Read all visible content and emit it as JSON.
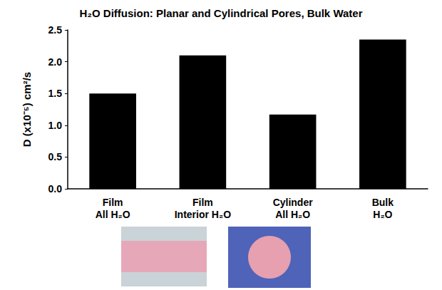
{
  "chart_data": {
    "type": "bar",
    "title": "H₂O Diffusion: Planar and Cylindrical Pores, Bulk Water",
    "y_label": "D (x10⁻⁵) cm²/s",
    "categories": [
      "Film All H₂O",
      "Film Interior H₂O",
      "Cylinder All H₂O",
      "Bulk H₂O"
    ],
    "values": [
      1.5,
      2.1,
      1.17,
      2.35
    ],
    "color": "#000000",
    "ylim": [
      0,
      2.5
    ],
    "yticks": [
      {
        "value": 0,
        "label": "0.0"
      },
      {
        "value": 0.5,
        "label": "0.5"
      },
      {
        "value": 1,
        "label": "1.0"
      },
      {
        "value": 1.5,
        "label": "1.5"
      },
      {
        "value": 2,
        "label": "2.0"
      },
      {
        "value": 2.5,
        "label": "2.5"
      }
    ],
    "grid": false
  }
}
